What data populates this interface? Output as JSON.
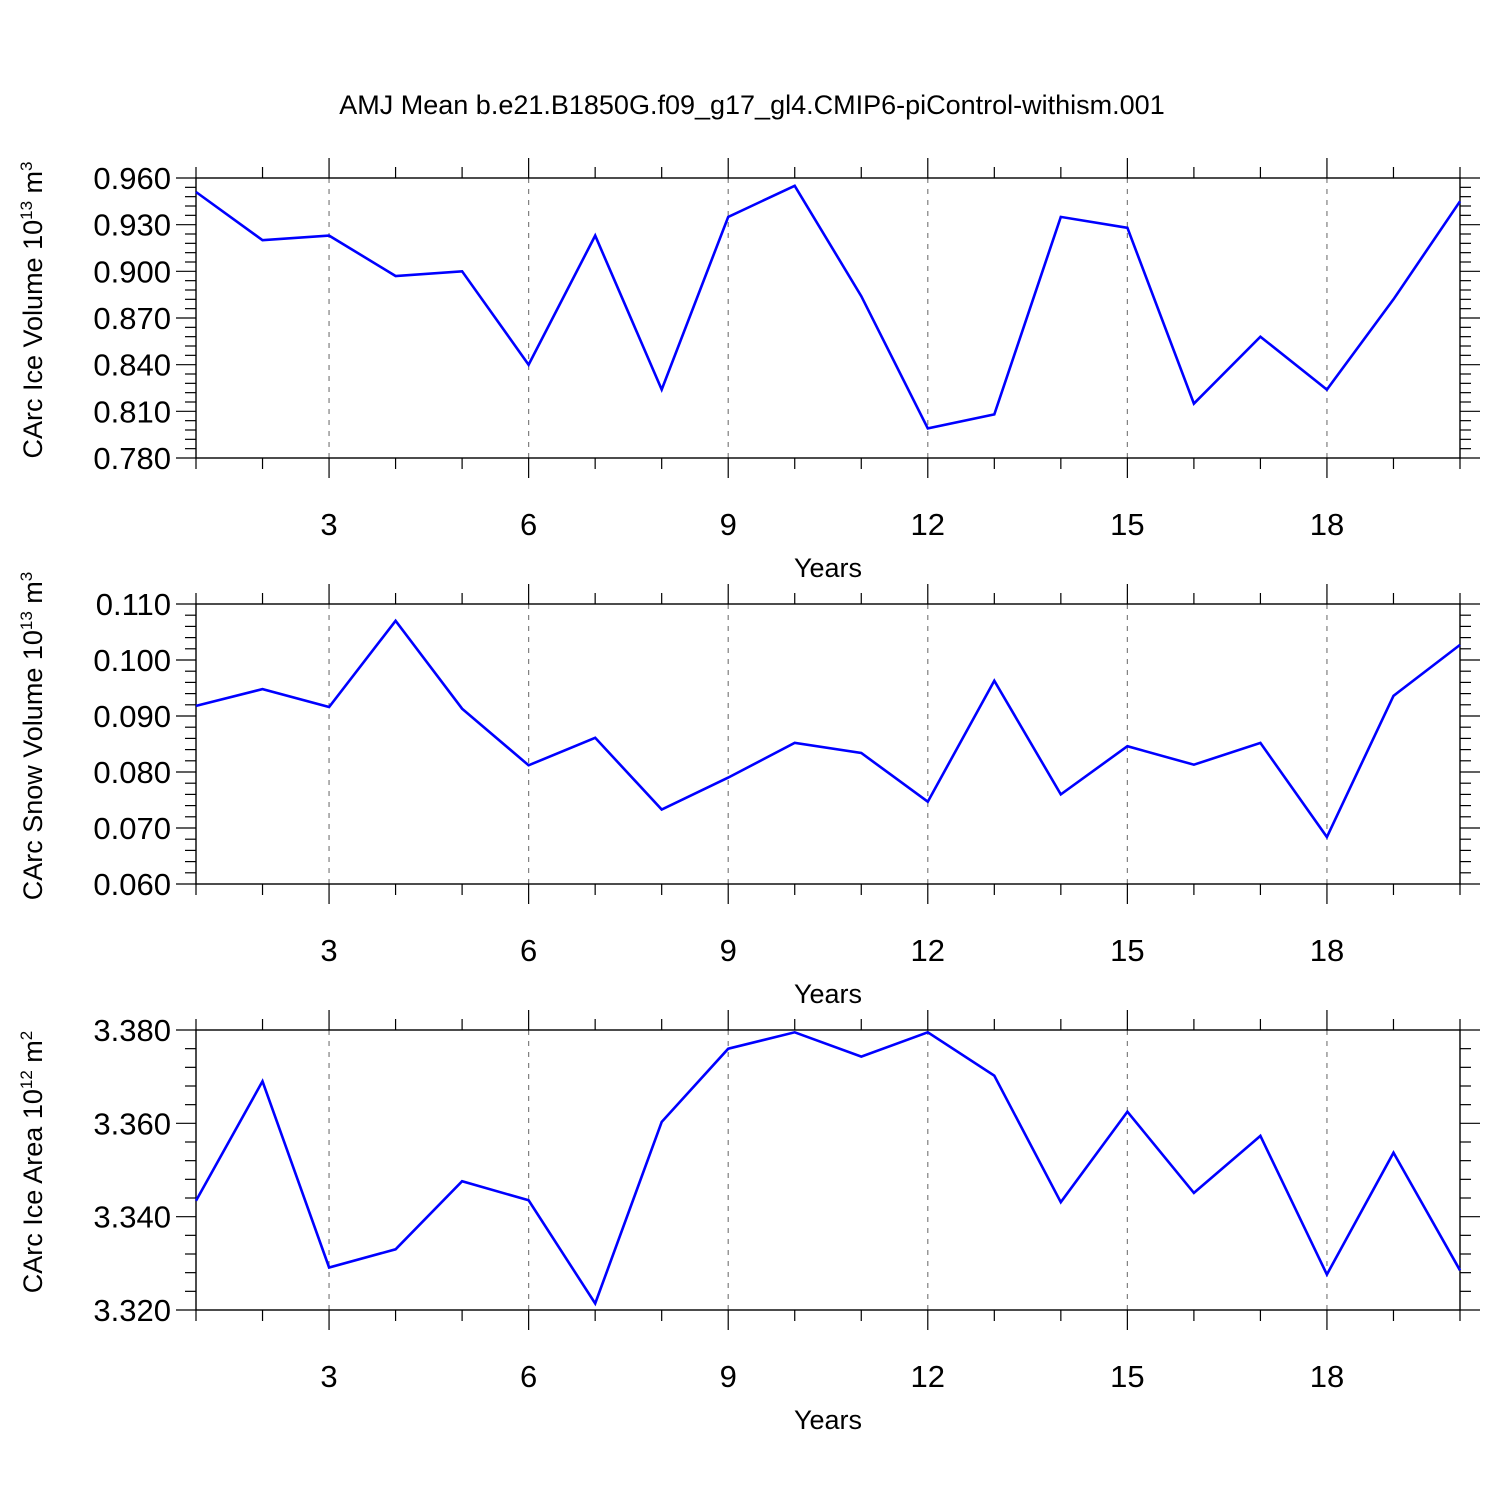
{
  "title": "AMJ Mean b.e21.B1850G.f09_g17_gl4.CMIP6-piControl-withism.001",
  "colors": {
    "line": "#0000ff",
    "axis": "#000000",
    "grid": "#7f7f7f"
  },
  "chart_data": [
    {
      "type": "line",
      "xlabel": "Years",
      "ylabel": {
        "text": "CArc Ice Volume 10",
        "sup": "13",
        "unit": " m",
        "unit_sup": "3"
      },
      "xlim": [
        1,
        20
      ],
      "ylim": [
        0.78,
        0.96
      ],
      "xticks": [
        3,
        6,
        9,
        12,
        15,
        18
      ],
      "x_tick_labels": [
        "3",
        "6",
        "9",
        "12",
        "15",
        "18"
      ],
      "yticks": [
        0.78,
        0.81,
        0.84,
        0.87,
        0.9,
        0.93,
        0.96
      ],
      "y_tick_labels": [
        "0.780",
        "0.810",
        "0.840",
        "0.870",
        "0.900",
        "0.930",
        "0.960"
      ],
      "y_minor_step": 0.006,
      "grid": "vertical dashed at major x ticks",
      "x": [
        1,
        2,
        3,
        4,
        5,
        6,
        7,
        8,
        9,
        10,
        11,
        12,
        13,
        14,
        15,
        16,
        17,
        18,
        19,
        20
      ],
      "series": [
        {
          "values": [
            0.951,
            0.92,
            0.923,
            0.897,
            0.9,
            0.84,
            0.923,
            0.824,
            0.935,
            0.955,
            0.884,
            0.799,
            0.808,
            0.935,
            0.928,
            0.815,
            0.858,
            0.824,
            0.882,
            0.945
          ]
        }
      ]
    },
    {
      "type": "line",
      "xlabel": "Years",
      "ylabel": {
        "text": "CArc Snow Volume 10",
        "sup": "13",
        "unit": " m",
        "unit_sup": "3"
      },
      "xlim": [
        1,
        20
      ],
      "ylim": [
        0.06,
        0.11
      ],
      "xticks": [
        3,
        6,
        9,
        12,
        15,
        18
      ],
      "x_tick_labels": [
        "3",
        "6",
        "9",
        "12",
        "15",
        "18"
      ],
      "yticks": [
        0.06,
        0.07,
        0.08,
        0.09,
        0.1,
        0.11
      ],
      "y_tick_labels": [
        "0.060",
        "0.070",
        "0.080",
        "0.090",
        "0.100",
        "0.110"
      ],
      "y_minor_step": 0.002,
      "grid": "vertical dashed at major x ticks",
      "x": [
        1,
        2,
        3,
        4,
        5,
        6,
        7,
        8,
        9,
        10,
        11,
        12,
        13,
        14,
        15,
        16,
        17,
        18,
        19,
        20
      ],
      "series": [
        {
          "values": [
            0.0918,
            0.0948,
            0.0916,
            0.107,
            0.0913,
            0.0812,
            0.0861,
            0.0733,
            0.079,
            0.0852,
            0.0834,
            0.0747,
            0.0963,
            0.076,
            0.0846,
            0.0813,
            0.0852,
            0.0684,
            0.0936,
            0.1027
          ]
        }
      ]
    },
    {
      "type": "line",
      "xlabel": "Years",
      "ylabel": {
        "text": "CArc Ice Area 10",
        "sup": "12",
        "unit": " m",
        "unit_sup": "2"
      },
      "xlim": [
        1,
        20
      ],
      "ylim": [
        3.32,
        3.38
      ],
      "xticks": [
        3,
        6,
        9,
        12,
        15,
        18
      ],
      "x_tick_labels": [
        "3",
        "6",
        "9",
        "12",
        "15",
        "18"
      ],
      "yticks": [
        3.32,
        3.34,
        3.36,
        3.38
      ],
      "y_tick_labels": [
        "3.320",
        "3.340",
        "3.360",
        "3.380"
      ],
      "y_minor_step": 0.004,
      "grid": "vertical dashed at major x ticks",
      "x": [
        1,
        2,
        3,
        4,
        5,
        6,
        7,
        8,
        9,
        10,
        11,
        12,
        13,
        14,
        15,
        16,
        17,
        18,
        19,
        20
      ],
      "series": [
        {
          "values": [
            3.3434,
            3.369,
            3.3291,
            3.333,
            3.3476,
            3.3435,
            3.3214,
            3.3603,
            3.376,
            3.3795,
            3.3743,
            3.3795,
            3.3702,
            3.3431,
            3.3625,
            3.3451,
            3.3573,
            3.3276,
            3.3537,
            3.3285
          ]
        }
      ]
    }
  ]
}
